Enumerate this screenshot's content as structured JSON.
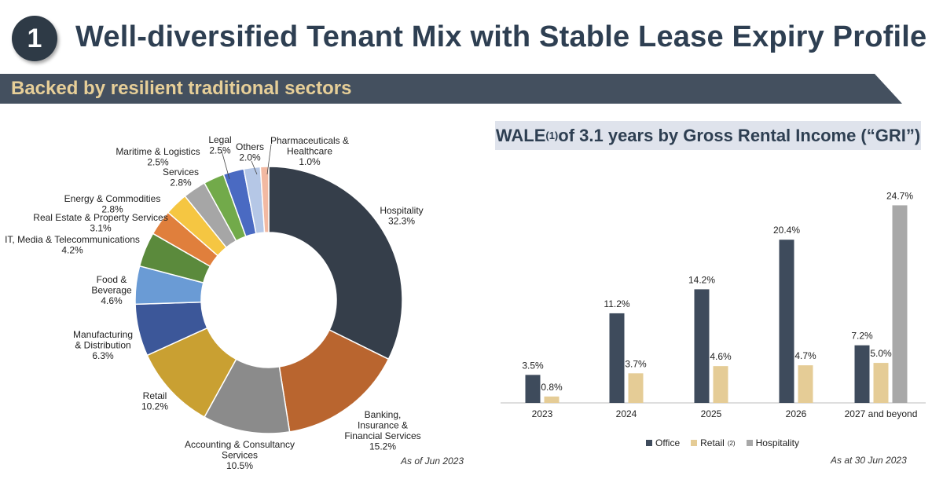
{
  "header": {
    "number": "1",
    "title": "Well-diversified Tenant Mix with Stable Lease Expiry Profile",
    "banner": "Backed by resilient traditional sectors"
  },
  "colors": {
    "title": "#2e3f52",
    "banner_bg": "#44505f",
    "banner_text": "#e7cf98",
    "wale_bg": "#dfe3ec"
  },
  "wale": {
    "prefix": "WALE",
    "footnote": "(1)",
    "suffix": " of 3.1 years by Gross Rental Income (“GRI”)"
  },
  "notes": {
    "donut": "As of Jun 2023",
    "bar": "As at 30 Jun 2023"
  },
  "chart_data": [
    {
      "type": "pie",
      "title": "",
      "start": "top",
      "direction": "clockwise",
      "hole": true,
      "slices": [
        {
          "label_lines": [
            "Hospitality",
            "32.3%"
          ],
          "value": 32.3,
          "color": "#353e4a"
        },
        {
          "label_lines": [
            "Banking,",
            "Insurance &",
            "Financial Services",
            "15.2%"
          ],
          "value": 15.2,
          "color": "#b9652f"
        },
        {
          "label_lines": [
            "Accounting & Consultancy",
            "Services",
            "10.5%"
          ],
          "value": 10.5,
          "color": "#8b8b8b"
        },
        {
          "label_lines": [
            "Retail",
            "10.2%"
          ],
          "value": 10.2,
          "color": "#c9a032"
        },
        {
          "label_lines": [
            "Manufacturing",
            "& Distribution",
            "6.3%"
          ],
          "value": 6.3,
          "color": "#3c5799"
        },
        {
          "label_lines": [
            "Food &",
            "Beverage",
            "4.6%"
          ],
          "value": 4.6,
          "color": "#6a9bd5"
        },
        {
          "label_lines": [
            "IT, Media & Telecommunications",
            "4.2%"
          ],
          "value": 4.2,
          "color": "#5b8a3c"
        },
        {
          "label_lines": [
            "Real Estate & Property Services",
            "3.1%"
          ],
          "value": 3.1,
          "color": "#e07f3c"
        },
        {
          "label_lines": [
            "Energy & Commodities",
            "2.8%"
          ],
          "value": 2.8,
          "color": "#f5c642"
        },
        {
          "label_lines": [
            "Services",
            "2.8%"
          ],
          "value": 2.8,
          "color": "#a6a6a6"
        },
        {
          "label_lines": [
            "Maritime & Logistics",
            "2.5%"
          ],
          "value": 2.5,
          "color": "#72aa4a"
        },
        {
          "label_lines": [
            "Legal",
            "2.5%"
          ],
          "value": 2.5,
          "color": "#4a6ac2"
        },
        {
          "label_lines": [
            "Others",
            "2.0%"
          ],
          "value": 2.0,
          "color": "#b5c7e6"
        },
        {
          "label_lines": [
            "Pharmaceuticals &",
            "Healthcare",
            "1.0%"
          ],
          "value": 1.0,
          "color": "#f2b9a2"
        }
      ]
    },
    {
      "type": "bar",
      "title": "WALE(1) of 3.1 years by Gross Rental Income (“GRI”)",
      "categories": [
        "2023",
        "2024",
        "2025",
        "2026",
        "2027 and beyond"
      ],
      "series": [
        {
          "name": "Office",
          "values": [
            3.5,
            11.2,
            14.2,
            20.4,
            7.2
          ],
          "labels": [
            "3.5%",
            "11.2%",
            "14.2%",
            "20.4%",
            "7.2%"
          ],
          "color": "#3e4b5c"
        },
        {
          "name": "Retail",
          "legend_sup": "(2)",
          "values": [
            0.8,
            3.7,
            4.6,
            4.7,
            5.0
          ],
          "labels": [
            "0.8%",
            "3.7%",
            "4.6%",
            "4.7%",
            "5.0%"
          ],
          "color": "#e5cc96"
        },
        {
          "name": "Hospitality",
          "values": [
            null,
            null,
            null,
            null,
            24.7
          ],
          "labels": [
            null,
            null,
            null,
            null,
            "24.7%"
          ],
          "color": "#a8a8a8"
        }
      ],
      "ylim": [
        0,
        27
      ],
      "y_axis_visible": false,
      "legend": "bottom"
    }
  ]
}
